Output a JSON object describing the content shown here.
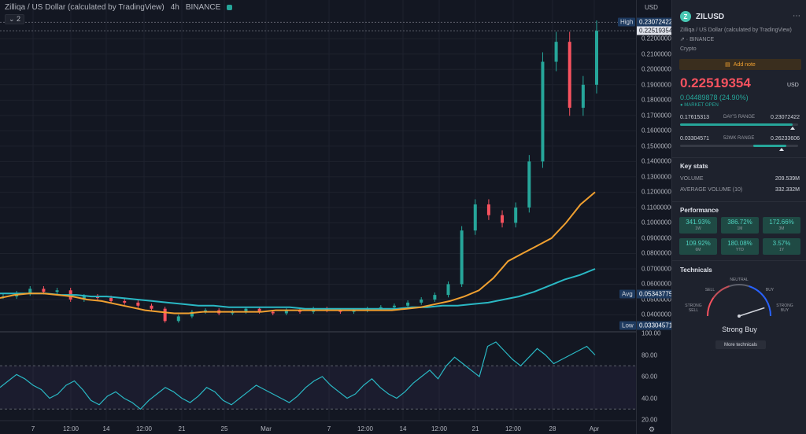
{
  "header": {
    "instrument": "Zilliqa / US Dollar (calculated by TradingView)",
    "interval": "4h",
    "exchange": "BINANCE",
    "collapse_label": "⌄ 2"
  },
  "chart_data": {
    "type": "line",
    "title": "Zilliqa / US Dollar (calculated by TradingView)",
    "interval": "4h",
    "currency": "USD",
    "ylim": [
      0.03,
      0.235
    ],
    "y_ticks": [
      "0.22000000",
      "0.21000000",
      "0.20000000",
      "0.19000000",
      "0.18000000",
      "0.17000000",
      "0.16000000",
      "0.15000000",
      "0.14000000",
      "0.13000000",
      "0.12000000",
      "0.11000000",
      "0.10000000",
      "0.09000000",
      "0.08000000",
      "0.07000000",
      "0.06000000",
      "0.05000000",
      "0.04000000"
    ],
    "x_ticks": [
      "7",
      "12:00",
      "14",
      "12:00",
      "21",
      "25",
      "Mar",
      "7",
      "12:00",
      "14",
      "12:00",
      "21",
      "12:00",
      "28",
      "Apr"
    ],
    "price_path": [
      0.052,
      0.054,
      0.057,
      0.055,
      0.056,
      0.05,
      0.052,
      0.051,
      0.049,
      0.048,
      0.046,
      0.044,
      0.036,
      0.039,
      0.042,
      0.043,
      0.041,
      0.042,
      0.044,
      0.042,
      0.041,
      0.043,
      0.042,
      0.044,
      0.043,
      0.042,
      0.043,
      0.044,
      0.045,
      0.046,
      0.048,
      0.05,
      0.053,
      0.06,
      0.095,
      0.112,
      0.105,
      0.1,
      0.11,
      0.14,
      0.205,
      0.218,
      0.175,
      0.19,
      0.2252
    ],
    "ma_fast": [
      0.051,
      0.053,
      0.054,
      0.054,
      0.053,
      0.052,
      0.05,
      0.049,
      0.047,
      0.045,
      0.043,
      0.042,
      0.041,
      0.041,
      0.042,
      0.042,
      0.042,
      0.042,
      0.042,
      0.043,
      0.043,
      0.043,
      0.043,
      0.043,
      0.043,
      0.043,
      0.043,
      0.043,
      0.044,
      0.045,
      0.047,
      0.049,
      0.052,
      0.056,
      0.064,
      0.075,
      0.08,
      0.085,
      0.09,
      0.1,
      0.112,
      0.12
    ],
    "ma_slow": [
      0.054,
      0.054,
      0.054,
      0.054,
      0.053,
      0.053,
      0.052,
      0.052,
      0.051,
      0.05,
      0.049,
      0.048,
      0.047,
      0.046,
      0.046,
      0.045,
      0.045,
      0.045,
      0.045,
      0.045,
      0.044,
      0.044,
      0.044,
      0.044,
      0.044,
      0.044,
      0.044,
      0.045,
      0.045,
      0.046,
      0.046,
      0.047,
      0.048,
      0.05,
      0.052,
      0.055,
      0.059,
      0.063,
      0.066,
      0.07
    ],
    "price_labels": {
      "high_label": "High",
      "high": "0.23072422",
      "last": "0.22519354",
      "avg_label": "Avg",
      "avg": "0.05343775",
      "low_label": "Low",
      "low": "0.03304571"
    },
    "rsi": {
      "ylim": [
        20,
        100
      ],
      "y_ticks": [
        "100.00",
        "80.00",
        "60.00",
        "40.00",
        "20.00"
      ],
      "band": [
        30,
        70
      ],
      "values": [
        50,
        56,
        62,
        58,
        52,
        48,
        40,
        44,
        52,
        56,
        48,
        38,
        34,
        42,
        46,
        40,
        36,
        30,
        38,
        44,
        50,
        46,
        40,
        36,
        42,
        50,
        46,
        38,
        34,
        40,
        46,
        52,
        48,
        44,
        40,
        36,
        42,
        50,
        56,
        60,
        52,
        46,
        40,
        44,
        52,
        58,
        50,
        44,
        40,
        46,
        54,
        60,
        66,
        58,
        70,
        78,
        72,
        66,
        60,
        88,
        92,
        84,
        76,
        70,
        78,
        86,
        80,
        72,
        76,
        80,
        84,
        88,
        80
      ]
    }
  },
  "axis": {
    "currency_label": "USD",
    "settings_icon": "gear-icon"
  },
  "panel": {
    "symbol": "ZILUSD",
    "logo_glyph": "Z",
    "menu_glyph": "⋯",
    "full_name": "Zilliqa / US Dollar (calculated by TradingView)",
    "exchange_line": "⇗ · BINANCE",
    "category": "Crypto",
    "add_note": "Add note",
    "price": "0.22519354",
    "price_unit": "USD",
    "change": "0.04489878 (24.90%)",
    "market_status": "● MARKET OPEN",
    "day_range": {
      "label": "DAY'S RANGE",
      "low": "0.17615313",
      "high": "0.23072422",
      "position": 0.95
    },
    "week52_range": {
      "label": "52WK RANGE",
      "low": "0.03304571",
      "high": "0.26233606",
      "position": 0.86
    },
    "key_stats": {
      "title": "Key stats",
      "volume_label": "VOLUME",
      "volume": "209.539M",
      "avg_volume_label": "AVERAGE VOLUME (10)",
      "avg_volume": "332.332M"
    },
    "performance": {
      "title": "Performance",
      "items": [
        {
          "value": "341.93%",
          "label": "1W"
        },
        {
          "value": "386.72%",
          "label": "1M"
        },
        {
          "value": "172.66%",
          "label": "3M"
        },
        {
          "value": "109.92%",
          "label": "6M"
        },
        {
          "value": "180.08%",
          "label": "YTD"
        },
        {
          "value": "3.57%",
          "label": "1Y"
        }
      ]
    },
    "technicals": {
      "title": "Technicals",
      "neutral": "NEUTRAL",
      "sell": "SELL",
      "buy": "BUY",
      "strong_sell": "STRONG\nSELL",
      "strong_buy": "STRONG\nBUY",
      "rating": "Strong Buy",
      "gauge_value": 0.9,
      "more": "More technicals"
    },
    "colors": {
      "up": "#26a69a",
      "down": "#f7525f",
      "accent": "#f0a030",
      "ma_fast": "#f0a030",
      "ma_slow": "#2ab8c4"
    }
  }
}
